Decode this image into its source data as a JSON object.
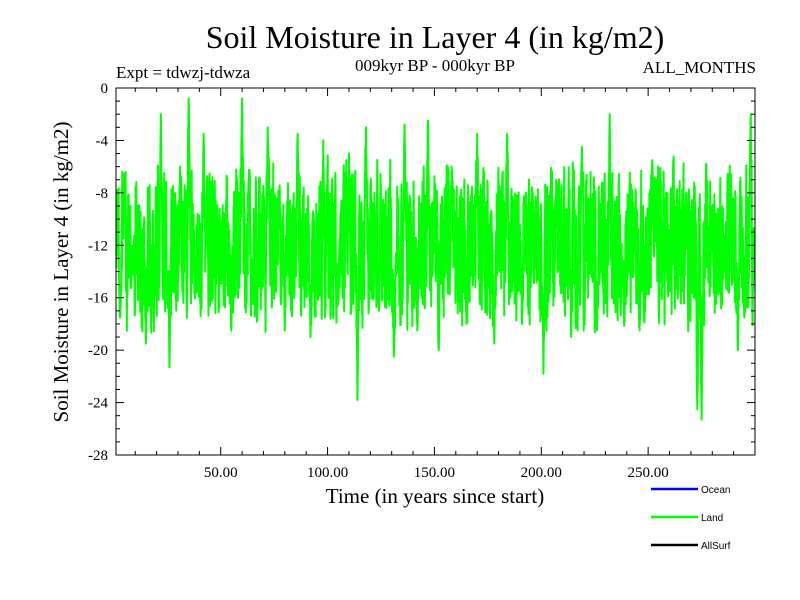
{
  "chart_data": {
    "type": "line",
    "title": "Soil Moisture in Layer 4 (in kg/m2)",
    "subtitle_left": "Expt = tdwzj-tdwza",
    "subtitle_center": "009kyr BP - 000kyr BP",
    "subtitle_right": "ALL_MONTHS",
    "xlabel": "Time (in years since start)",
    "ylabel": "Soil Moisture in Layer 4 (in kg/m2)",
    "xlim": [
      1,
      300
    ],
    "ylim": [
      -28,
      0
    ],
    "xticks": [
      50,
      100,
      150,
      200,
      250
    ],
    "xtick_labels": [
      "50.00",
      "100.00",
      "150.00",
      "200.00",
      "250.00"
    ],
    "yticks": [
      0,
      -4,
      -8,
      -12,
      -16,
      -20,
      -24,
      -28
    ],
    "ytick_labels": [
      "0",
      "-4",
      "-8",
      "-12",
      "-16",
      "-20",
      "-24",
      "-28"
    ],
    "legend": [
      {
        "name": "Ocean",
        "color": "#0000ff"
      },
      {
        "name": "Land",
        "color": "#00ff00"
      },
      {
        "name": "AllSurf",
        "color": "#000000"
      }
    ],
    "series": [
      {
        "name": "Land",
        "color": "#00ff00",
        "sampling": "monthly",
        "start_year": 1,
        "mean": -12,
        "noise_amplitude": 4.5,
        "anchors": [
          {
            "x": 3,
            "y": -17.5
          },
          {
            "x": 5,
            "y": -6.5
          },
          {
            "x": 9,
            "y": -13.5
          },
          {
            "x": 15,
            "y": -19.5
          },
          {
            "x": 22,
            "y": -2.0
          },
          {
            "x": 26,
            "y": -21.3
          },
          {
            "x": 31,
            "y": -6.0
          },
          {
            "x": 35,
            "y": -0.8
          },
          {
            "x": 38,
            "y": -16.0
          },
          {
            "x": 42,
            "y": -3.5
          },
          {
            "x": 50,
            "y": -14.0
          },
          {
            "x": 55,
            "y": -18.5
          },
          {
            "x": 60,
            "y": -0.8
          },
          {
            "x": 65,
            "y": -16.5
          },
          {
            "x": 72,
            "y": -3.0
          },
          {
            "x": 80,
            "y": -18.5
          },
          {
            "x": 86,
            "y": -3.5
          },
          {
            "x": 92,
            "y": -19.0
          },
          {
            "x": 98,
            "y": -4.0
          },
          {
            "x": 105,
            "y": -16.5
          },
          {
            "x": 110,
            "y": -5.0
          },
          {
            "x": 114,
            "y": -23.8
          },
          {
            "x": 118,
            "y": -3.0
          },
          {
            "x": 124,
            "y": -17.0
          },
          {
            "x": 131,
            "y": -20.5
          },
          {
            "x": 136,
            "y": -2.8
          },
          {
            "x": 142,
            "y": -18.5
          },
          {
            "x": 147,
            "y": -2.5
          },
          {
            "x": 152,
            "y": -20.0
          },
          {
            "x": 158,
            "y": -6.0
          },
          {
            "x": 165,
            "y": -18.0
          },
          {
            "x": 170,
            "y": -3.5
          },
          {
            "x": 178,
            "y": -19.5
          },
          {
            "x": 184,
            "y": -3.5
          },
          {
            "x": 191,
            "y": -18.0
          },
          {
            "x": 196,
            "y": -8.0
          },
          {
            "x": 201,
            "y": -21.8
          },
          {
            "x": 207,
            "y": -7.0
          },
          {
            "x": 214,
            "y": -19.0
          },
          {
            "x": 219,
            "y": -4.5
          },
          {
            "x": 226,
            "y": -18.5
          },
          {
            "x": 232,
            "y": -2.0
          },
          {
            "x": 238,
            "y": -15.0
          },
          {
            "x": 246,
            "y": -18.5
          },
          {
            "x": 252,
            "y": -5.5
          },
          {
            "x": 260,
            "y": -15.5
          },
          {
            "x": 268,
            "y": -8.0
          },
          {
            "x": 273,
            "y": -24.5
          },
          {
            "x": 275,
            "y": -25.3
          },
          {
            "x": 280,
            "y": -9.0
          },
          {
            "x": 286,
            "y": -14.0
          },
          {
            "x": 292,
            "y": -20.0
          },
          {
            "x": 295,
            "y": -17.5
          },
          {
            "x": 298,
            "y": -2.0
          },
          {
            "x": 300,
            "y": -14.0
          }
        ]
      },
      {
        "name": "Ocean",
        "color": "#0000ff",
        "values": []
      },
      {
        "name": "AllSurf",
        "color": "#000000",
        "values": []
      }
    ]
  }
}
